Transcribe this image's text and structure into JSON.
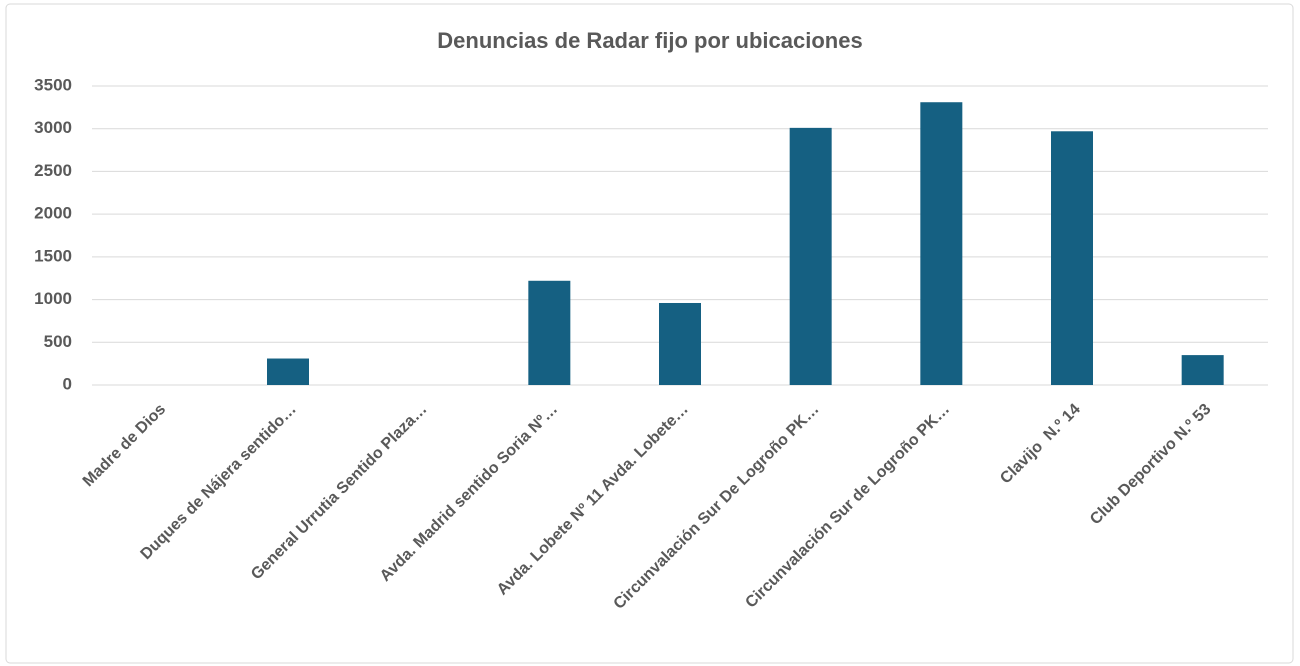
{
  "chart_data": {
    "type": "bar",
    "title": "Denuncias de Radar fijo por ubicaciones",
    "categories": [
      "Madre de Dios",
      "Duques de Nájera sentido…",
      "General Urrutia Sentido Plaza…",
      "Avda. Madrid sentido Soria Nº…",
      "Avda. Lobete Nº 11 Avda. Lobete…",
      "Circunvalación Sur De Logroño PK…",
      "Circunvalación Sur de Logroño PK…",
      "Clavijo  N.º 14",
      "Club Deportivo N.º 53"
    ],
    "values": [
      0,
      310,
      0,
      1220,
      960,
      3010,
      3310,
      2970,
      350
    ],
    "color": "#156082",
    "ylim": [
      0,
      3500
    ],
    "yticks": [
      0,
      500,
      1000,
      1500,
      2000,
      2500,
      3000,
      3500
    ],
    "grid": true
  }
}
